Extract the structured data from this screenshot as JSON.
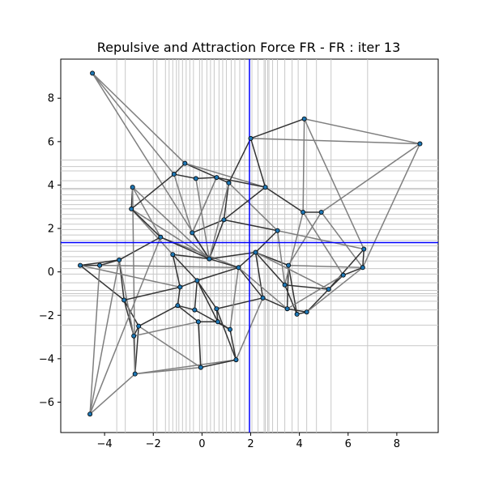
{
  "chart_data": {
    "type": "scatter",
    "title": "Repulsive and Attraction Force FR - FR : iter 13",
    "xlabel": "",
    "ylabel": "",
    "xlim": [
      -5.8,
      9.7
    ],
    "ylim": [
      -7.4,
      9.8
    ],
    "xticks": [
      -4,
      -2,
      0,
      2,
      4,
      6,
      8
    ],
    "yticks": [
      -6,
      -4,
      -2,
      0,
      2,
      4,
      6,
      8
    ],
    "grid": false,
    "legend": "none",
    "colors": {
      "point": "#1f77b4",
      "edge": "#7f7f7f",
      "edge_dense": "#333333",
      "guide_line": "#c8c8c8",
      "center_line": "#0000ff"
    },
    "center_marker": {
      "x": 1.95,
      "y": 1.35
    },
    "points": [
      {
        "x": -4.5,
        "y": 9.15
      },
      {
        "x": 4.2,
        "y": 7.05
      },
      {
        "x": 2.0,
        "y": 6.15
      },
      {
        "x": 8.95,
        "y": 5.9
      },
      {
        "x": -0.7,
        "y": 5.0
      },
      {
        "x": -1.15,
        "y": 4.5
      },
      {
        "x": -0.25,
        "y": 4.3
      },
      {
        "x": 0.6,
        "y": 4.35
      },
      {
        "x": 1.1,
        "y": 4.1
      },
      {
        "x": 2.6,
        "y": 3.9
      },
      {
        "x": -2.85,
        "y": 3.9
      },
      {
        "x": -2.9,
        "y": 2.9
      },
      {
        "x": 4.15,
        "y": 2.75
      },
      {
        "x": 4.9,
        "y": 2.75
      },
      {
        "x": -1.7,
        "y": 1.6
      },
      {
        "x": 3.1,
        "y": 1.9
      },
      {
        "x": -3.4,
        "y": 0.55
      },
      {
        "x": -4.2,
        "y": 0.3
      },
      {
        "x": -5.0,
        "y": 0.3
      },
      {
        "x": 6.65,
        "y": 1.05
      },
      {
        "x": 6.6,
        "y": 0.2
      },
      {
        "x": 5.8,
        "y": -0.15
      },
      {
        "x": 5.2,
        "y": -0.8
      },
      {
        "x": 3.55,
        "y": 0.3
      },
      {
        "x": -1.2,
        "y": 0.8
      },
      {
        "x": -0.9,
        "y": -0.7
      },
      {
        "x": 0.3,
        "y": 0.6
      },
      {
        "x": 1.5,
        "y": 0.2
      },
      {
        "x": -0.4,
        "y": 1.8
      },
      {
        "x": 0.9,
        "y": 2.4
      },
      {
        "x": 2.2,
        "y": 0.9
      },
      {
        "x": -0.2,
        "y": -0.4
      },
      {
        "x": 2.5,
        "y": -1.2
      },
      {
        "x": 3.4,
        "y": -0.6
      },
      {
        "x": 3.5,
        "y": -1.7
      },
      {
        "x": 3.9,
        "y": -1.95
      },
      {
        "x": 4.3,
        "y": -1.85
      },
      {
        "x": -3.2,
        "y": -1.3
      },
      {
        "x": -2.6,
        "y": -2.5
      },
      {
        "x": -2.8,
        "y": -2.95
      },
      {
        "x": -2.75,
        "y": -4.7
      },
      {
        "x": -0.05,
        "y": -4.4
      },
      {
        "x": 1.4,
        "y": -4.05
      },
      {
        "x": -0.15,
        "y": -2.3
      },
      {
        "x": 0.65,
        "y": -2.3
      },
      {
        "x": 1.15,
        "y": -2.65
      },
      {
        "x": -0.3,
        "y": -1.75
      },
      {
        "x": -1.0,
        "y": -1.55
      },
      {
        "x": -4.6,
        "y": -6.55
      },
      {
        "x": 0.6,
        "y": -1.7
      }
    ],
    "edges": [
      [
        0,
        4
      ],
      [
        0,
        26
      ],
      [
        1,
        2
      ],
      [
        1,
        3
      ],
      [
        1,
        12
      ],
      [
        1,
        19
      ],
      [
        2,
        3
      ],
      [
        2,
        9
      ],
      [
        3,
        20
      ],
      [
        3,
        13
      ],
      [
        4,
        5
      ],
      [
        4,
        8
      ],
      [
        4,
        9
      ],
      [
        5,
        6
      ],
      [
        5,
        28
      ],
      [
        6,
        7
      ],
      [
        7,
        9
      ],
      [
        8,
        15
      ],
      [
        9,
        12
      ],
      [
        10,
        14
      ],
      [
        10,
        11
      ],
      [
        11,
        24
      ],
      [
        11,
        26
      ],
      [
        12,
        13
      ],
      [
        12,
        21
      ],
      [
        13,
        20
      ],
      [
        14,
        16
      ],
      [
        14,
        27
      ],
      [
        15,
        30
      ],
      [
        16,
        17
      ],
      [
        16,
        18
      ],
      [
        16,
        37
      ],
      [
        17,
        18
      ],
      [
        17,
        27
      ],
      [
        18,
        25
      ],
      [
        18,
        37
      ],
      [
        19,
        20
      ],
      [
        19,
        22
      ],
      [
        20,
        21
      ],
      [
        20,
        23
      ],
      [
        21,
        22
      ],
      [
        22,
        33
      ],
      [
        22,
        36
      ],
      [
        23,
        30
      ],
      [
        23,
        34
      ],
      [
        24,
        26
      ],
      [
        24,
        25
      ],
      [
        25,
        31
      ],
      [
        26,
        27
      ],
      [
        26,
        28
      ],
      [
        27,
        30
      ],
      [
        28,
        29
      ],
      [
        29,
        15
      ],
      [
        29,
        8
      ],
      [
        30,
        32
      ],
      [
        31,
        46
      ],
      [
        32,
        34
      ],
      [
        33,
        35
      ],
      [
        34,
        36
      ],
      [
        35,
        36
      ],
      [
        35,
        23
      ],
      [
        37,
        38
      ],
      [
        37,
        39
      ],
      [
        38,
        39
      ],
      [
        38,
        40
      ],
      [
        39,
        40
      ],
      [
        39,
        16
      ],
      [
        40,
        41
      ],
      [
        40,
        42
      ],
      [
        40,
        10
      ],
      [
        41,
        42
      ],
      [
        41,
        43
      ],
      [
        42,
        45
      ],
      [
        42,
        32
      ],
      [
        43,
        44
      ],
      [
        43,
        47
      ],
      [
        44,
        45
      ],
      [
        44,
        49
      ],
      [
        45,
        46
      ],
      [
        46,
        47
      ],
      [
        47,
        25
      ],
      [
        48,
        40
      ],
      [
        48,
        16
      ],
      [
        48,
        17
      ],
      [
        48,
        14
      ],
      [
        49,
        31
      ],
      [
        31,
        27
      ],
      [
        26,
        30
      ],
      [
        24,
        31
      ],
      [
        28,
        7
      ],
      [
        6,
        26
      ],
      [
        5,
        11
      ],
      [
        15,
        33
      ],
      [
        12,
        33
      ],
      [
        13,
        23
      ],
      [
        21,
        34
      ],
      [
        29,
        26
      ],
      [
        27,
        32
      ],
      [
        30,
        33
      ],
      [
        0,
        5
      ],
      [
        36,
        20
      ],
      [
        34,
        27
      ],
      [
        32,
        49
      ],
      [
        8,
        26
      ],
      [
        9,
        29
      ],
      [
        7,
        28
      ],
      [
        2,
        8
      ],
      [
        19,
        15
      ],
      [
        22,
        30
      ],
      [
        10,
        26
      ],
      [
        11,
        14
      ],
      [
        14,
        26
      ],
      [
        37,
        25
      ],
      [
        38,
        47
      ],
      [
        39,
        43
      ],
      [
        45,
        27
      ],
      [
        44,
        31
      ],
      [
        42,
        49
      ],
      [
        41,
        38
      ]
    ],
    "guide_lines_x": [
      -3.5,
      -3.15,
      -2.0,
      -1.85,
      -1.5,
      -1.35,
      -1.2,
      -1.05,
      -0.95,
      -0.8,
      -0.65,
      -0.5,
      -0.35,
      -0.1,
      0.0,
      0.2,
      0.35,
      0.5,
      0.7,
      0.85,
      1.0,
      1.2,
      1.35,
      1.55,
      1.75,
      2.05,
      2.3,
      2.55,
      2.6,
      2.7,
      2.75,
      2.9,
      3.1,
      3.4,
      3.7,
      3.95,
      4.3,
      4.7,
      5.3,
      6.8
    ],
    "guide_lines_y": [
      -3.4,
      -2.45,
      -1.75,
      -1.35,
      -1.1,
      -1.0,
      -0.85,
      -0.5,
      -0.1,
      0.15,
      0.5,
      0.7,
      0.95,
      1.2,
      1.45,
      1.7,
      1.95,
      2.2,
      2.45,
      2.65,
      2.9,
      3.1,
      3.3,
      3.55,
      3.8,
      3.85,
      4.2,
      4.65,
      4.85,
      5.15
    ]
  }
}
